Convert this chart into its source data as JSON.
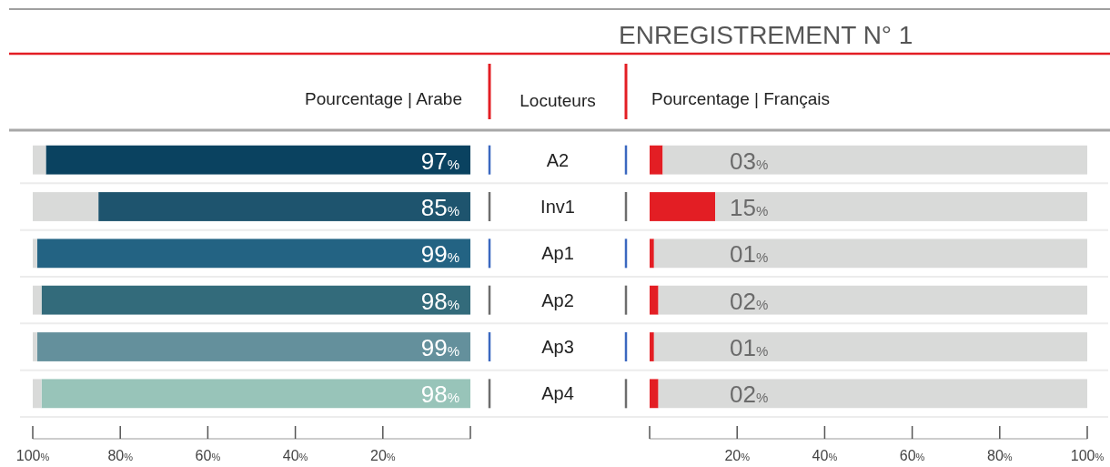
{
  "chart_data": [
    {
      "type": "bar",
      "orientation": "horizontal",
      "stacked": true,
      "title": "Pourcentage | Arabe",
      "ylabel": "Locuteurs",
      "categories": [
        "A2",
        "Inv1",
        "Ap1",
        "Ap2",
        "Ap3",
        "Ap4"
      ],
      "series": [
        {
          "colors": [
            "#0a4260",
            "#1e546e",
            "#236383",
            "#336b7b",
            "#64909c",
            "#98c4b9"
          ],
          "values": [
            97,
            85,
            99,
            98,
            99,
            98
          ],
          "value_labels": [
            "97%",
            "85%",
            "99%",
            "98%",
            "99%",
            "98%"
          ]
        },
        {
          "color": "#d9dad9",
          "values": [
            3,
            15,
            1,
            2,
            1,
            2
          ]
        }
      ],
      "xlim": [
        100,
        0
      ],
      "xticks": [
        {
          "value": 100,
          "label": "100%"
        },
        {
          "value": 80,
          "label": "80%"
        },
        {
          "value": 60,
          "label": "60%"
        },
        {
          "value": 40,
          "label": "40%"
        },
        {
          "value": 20,
          "label": "20%"
        },
        {
          "value": 0,
          "label": null
        }
      ],
      "grid": "y"
    },
    {
      "type": "bar",
      "orientation": "horizontal",
      "stacked": true,
      "title": "ENREGISTREMENT N° 1",
      "subtitle": "Pourcentage | Français",
      "categories": [
        null,
        null,
        null,
        null,
        null,
        null
      ],
      "series": [
        {
          "color": "#e31e24",
          "values": [
            3,
            15,
            1,
            2,
            1,
            2
          ],
          "value_labels": [
            "03%",
            "15%",
            "01%",
            "02%",
            "01%",
            "02%"
          ]
        },
        {
          "color": "#d9dad9",
          "values": [
            97,
            85,
            99,
            98,
            99,
            98
          ]
        }
      ],
      "xlim": [
        0,
        100
      ],
      "xticks": [
        {
          "value": 0,
          "label": null
        },
        {
          "value": 20,
          "label": "20%"
        },
        {
          "value": 40,
          "label": "40%"
        },
        {
          "value": 60,
          "label": "60%"
        },
        {
          "value": 80,
          "label": "80%"
        },
        {
          "value": 100,
          "label": "100%"
        }
      ],
      "grid": "y"
    }
  ]
}
